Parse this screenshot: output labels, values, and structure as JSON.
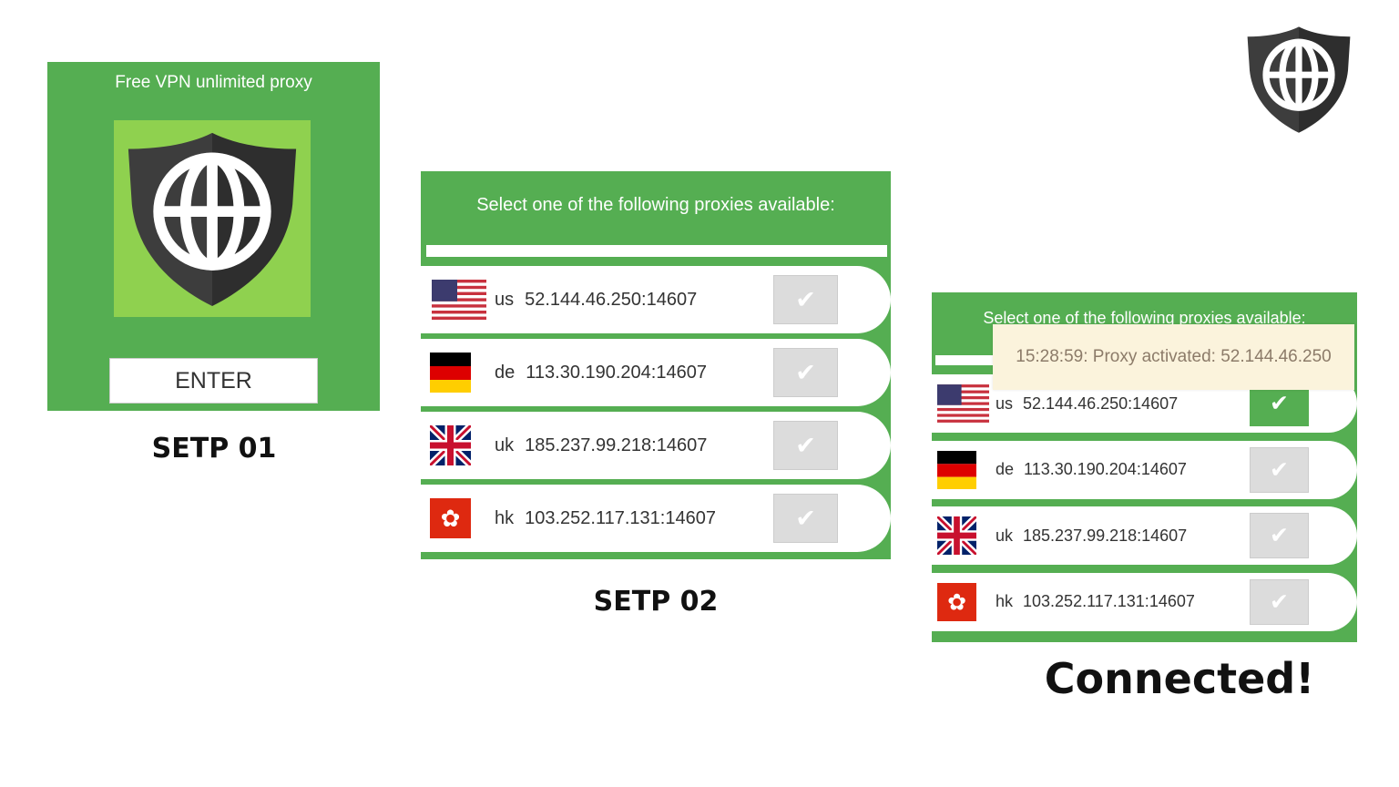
{
  "step1": {
    "title": "Free VPN unlimited proxy",
    "enter_label": "ENTER",
    "caption": "SETP 01"
  },
  "step2": {
    "header": "Select one of the following proxies available:",
    "caption": "SETP 02"
  },
  "step3": {
    "header": "Select one of the following proxies available:",
    "toast": "15:28:59: Proxy activated: 52.144.46.250",
    "caption": "Connected!",
    "active_index": 0
  },
  "proxies": [
    {
      "code": "us",
      "address": "52.144.46.250:14607",
      "flag": "us-flag-icon"
    },
    {
      "code": "de",
      "address": "113.30.190.204:14607",
      "flag": "germany-flag-icon"
    },
    {
      "code": "uk",
      "address": "185.237.99.218:14607",
      "flag": "uk-flag-icon"
    },
    {
      "code": "hk",
      "address": "103.252.117.131:14607",
      "flag": "hong-kong-flag-icon"
    }
  ],
  "colors": {
    "green": "#55ae52",
    "light_green": "#8fd14f",
    "shield": "#3a3a3a",
    "toast_bg": "#fbf3dc"
  },
  "icons": {
    "logo": "shield-globe-icon",
    "check": "check-icon"
  }
}
